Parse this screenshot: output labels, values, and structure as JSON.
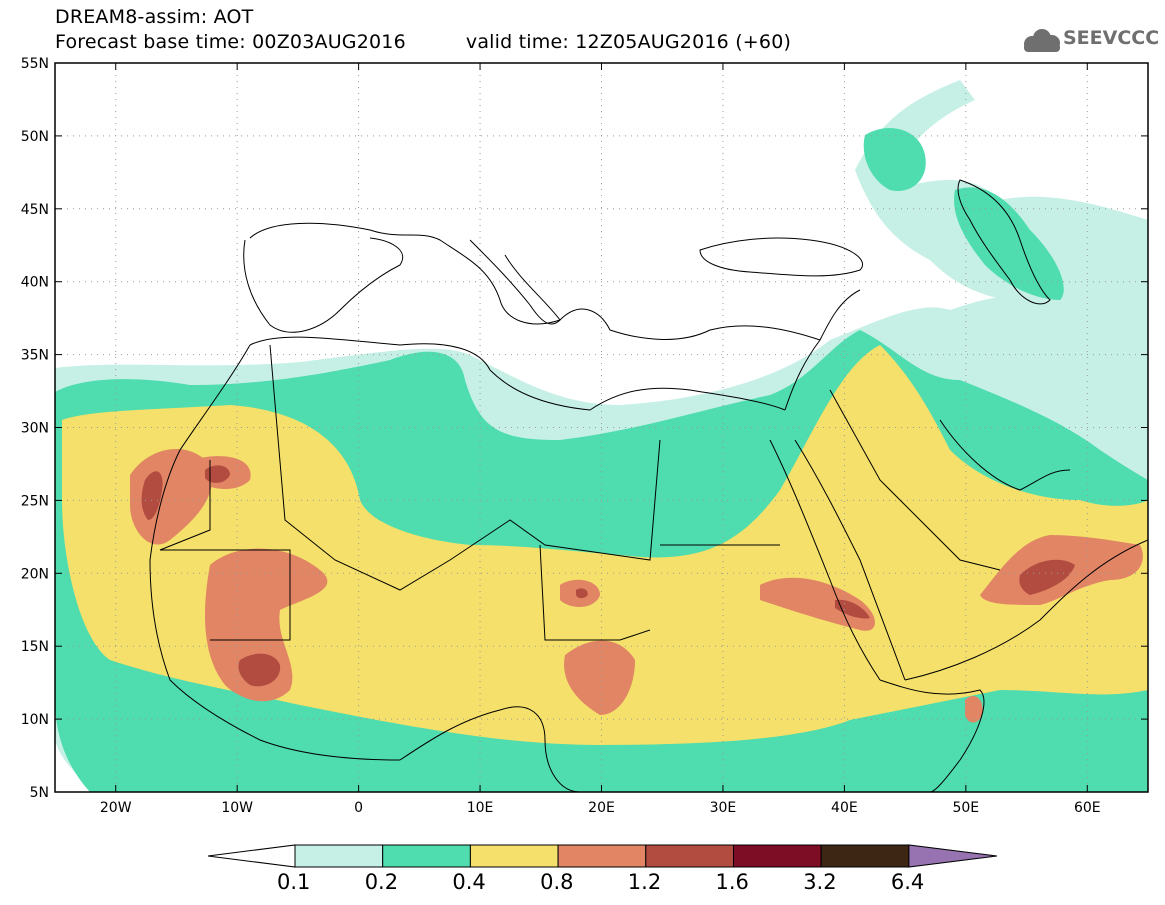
{
  "title": {
    "line1": "DREAM8-assim: AOT",
    "base_time": "Forecast base time: 00Z03AUG2016",
    "valid_time": "valid time: 12Z05AUG2016 (+60)"
  },
  "logo": {
    "text": "SEEVCCC",
    "icon": "cloud-icon"
  },
  "axes": {
    "lon_labels": [
      "20W",
      "10W",
      "0",
      "10E",
      "20E",
      "30E",
      "40E",
      "50E",
      "60E"
    ],
    "lon_values": [
      -20,
      -10,
      0,
      10,
      20,
      30,
      40,
      50,
      60
    ],
    "lat_labels": [
      "55N",
      "50N",
      "45N",
      "40N",
      "35N",
      "30N",
      "25N",
      "20N",
      "15N",
      "10N",
      "5N"
    ],
    "lat_values": [
      55,
      50,
      45,
      40,
      35,
      30,
      25,
      20,
      15,
      10,
      5
    ],
    "lon_range": [
      -25,
      65
    ],
    "lat_range": [
      5,
      55
    ],
    "grid": "dotted"
  },
  "colorbar": {
    "labels": [
      "0.1",
      "0.2",
      "0.4",
      "0.8",
      "1.2",
      "1.6",
      "3.2",
      "6.4"
    ],
    "colors": [
      "#ffffff",
      "#c6f0e6",
      "#4fdcaf",
      "#f4e06a",
      "#e18565",
      "#b34c40",
      "#7d0d25",
      "#3e2614",
      "#9774b1"
    ]
  }
}
